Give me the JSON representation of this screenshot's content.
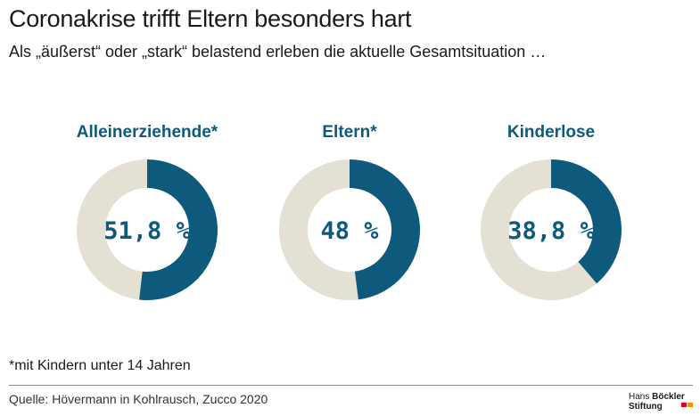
{
  "header": {
    "title": "Coronakrise trifft Eltern besonders hart",
    "subtitle": "Als „äußerst“ oder „stark“ belastend erleben die aktuelle Gesamtsituation …"
  },
  "colors": {
    "accent": "#0e5a7c",
    "remainder": "#e4e1d4",
    "label": "#0e5a7c"
  },
  "chart_data": [
    {
      "type": "pie",
      "title": "Alleinerziehende*",
      "value": 51.8,
      "value_label": "51,8 %"
    },
    {
      "type": "pie",
      "title": "Eltern*",
      "value": 48,
      "value_label": "48 %"
    },
    {
      "type": "pie",
      "title": "Kinderlose",
      "value": 38.8,
      "value_label": "38,8 %"
    }
  ],
  "footnote": "*mit Kindern unter 14 Jahren",
  "source": "Quelle: Hövermann in Kohlrausch, Zucco 2020",
  "logo": {
    "line1": "Hans",
    "line1_bold": "Böckler",
    "line2": "Stiftung",
    "bar_colors": [
      "#e2001a",
      "#f39200"
    ]
  }
}
